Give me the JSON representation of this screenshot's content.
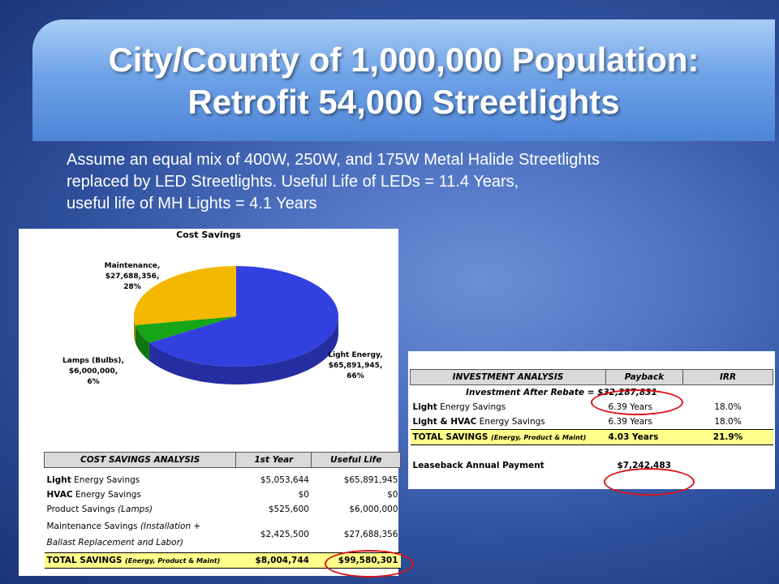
{
  "slide": {
    "title_line1": "City/County of 1,000,000 Population:",
    "title_line2": "Retrofit 54,000 Streetlights",
    "subtitle_line1": "Assume an equal mix of 400W, 250W, and 175W Metal Halide Streetlights",
    "subtitle_line2": "replaced by LED Streetlights.  Useful Life of LEDs = 11.4 Years,",
    "subtitle_line3": "useful life of MH Lights = 4.1 Years"
  },
  "chart_data": {
    "type": "pie",
    "title": "Cost Savings",
    "slices": [
      {
        "name": "Light Energy,",
        "value_label": "$65,891,945,",
        "pct_label": "66%",
        "value": 65891945,
        "color": "#3340e0"
      },
      {
        "name": "Lamps (Bulbs),",
        "value_label": "$6,000,000,",
        "pct_label": "6%",
        "value": 6000000,
        "color": "#16a516"
      },
      {
        "name": "Maintenance,",
        "value_label": "$27,688,356,",
        "pct_label": "28%",
        "value": 27688356,
        "color": "#f5b800"
      }
    ]
  },
  "cost_table": {
    "headers": [
      "COST SAVINGS ANALYSIS",
      "1st Year",
      "Useful Life"
    ],
    "rows": {
      "light": {
        "bold": "Light",
        "rest": " Energy Savings",
        "first": "$5,053,644",
        "life": "$65,891,945"
      },
      "hvac": {
        "bold": "HVAC",
        "rest": " Energy Savings",
        "first": "$0",
        "life": "$0"
      },
      "product": {
        "text": "Product Savings ",
        "italic": "(Lamps)",
        "first": "$525,600",
        "life": "$6,000,000"
      },
      "maint": {
        "line1a": "Maintenance Savings ",
        "line1b": "(Installation +",
        "line2": "Ballast Replacement and Labor)",
        "first": "$2,425,500",
        "life": "$27,688,356"
      }
    },
    "total": {
      "label": "TOTAL SAVINGS ",
      "note": "(Energy, Product & Maint)",
      "first": "$8,004,744",
      "life": "$99,580,301"
    }
  },
  "investment_table": {
    "headers": [
      "INVESTMENT ANALYSIS",
      "Payback",
      "IRR"
    ],
    "after_rebate_label": "Investment After Rebate = ",
    "after_rebate_value": "$32,287,831",
    "rows": {
      "light": {
        "bold": "Light",
        "rest": " Energy Savings",
        "payback": "6.39 Years",
        "irr": "18.0%"
      },
      "light_hvac": {
        "bold": "Light & HVAC",
        "rest": " Energy Savings",
        "payback": "6.39 Years",
        "irr": "18.0%"
      }
    },
    "total": {
      "label": "TOTAL SAVINGS ",
      "note": "(Energy, Product & Maint)",
      "payback": "4.03 Years",
      "irr": "21.9%"
    },
    "leaseback_label": "Leaseback Annual Payment",
    "leaseback_value": "$7,242,483"
  },
  "colors": {
    "highlight_circle": "#d8141b",
    "total_row": "#ffff8a"
  }
}
